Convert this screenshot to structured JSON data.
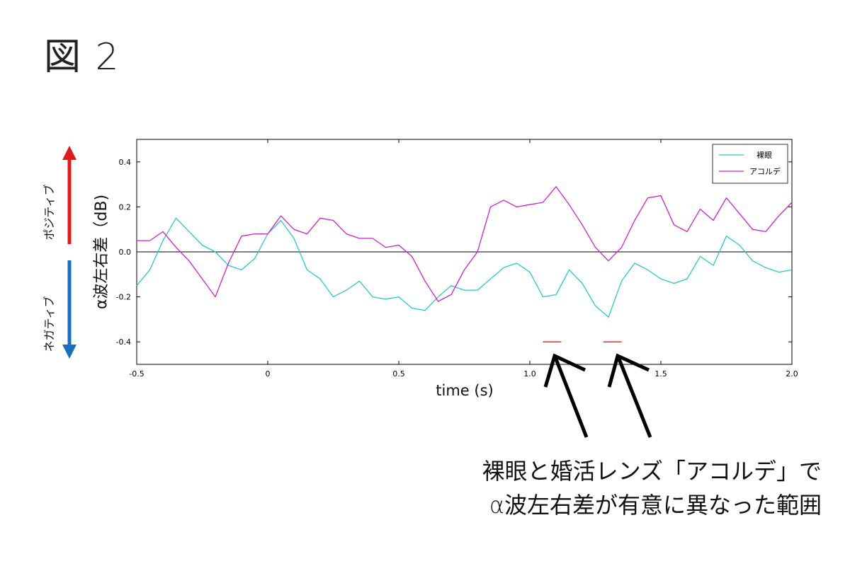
{
  "figure_title": "図 2",
  "chart_data": {
    "type": "line",
    "title": "",
    "xlabel": "time (s)",
    "ylabel": "α波左右差（dB)",
    "xlim": [
      -0.5,
      2.0
    ],
    "ylim": [
      -0.5,
      0.5
    ],
    "x_ticks": [
      "-0.5",
      "0",
      "0.5",
      "1.0",
      "1.5",
      "2.0"
    ],
    "y_ticks": [
      "0.4",
      "0.2",
      "0.0",
      "-0.2",
      "-0.4"
    ],
    "zero_line": 0.0,
    "grid": false,
    "legend_position": "top-right",
    "series": [
      {
        "name": "裸眼",
        "color": "#2cc7c7",
        "x": [
          -0.5,
          -0.45,
          -0.4,
          -0.35,
          -0.3,
          -0.25,
          -0.2,
          -0.15,
          -0.1,
          -0.05,
          0,
          0.05,
          0.1,
          0.15,
          0.2,
          0.25,
          0.3,
          0.35,
          0.4,
          0.45,
          0.5,
          0.55,
          0.6,
          0.65,
          0.7,
          0.75,
          0.8,
          0.85,
          0.9,
          0.95,
          1.0,
          1.05,
          1.1,
          1.15,
          1.2,
          1.25,
          1.3,
          1.35,
          1.4,
          1.45,
          1.5,
          1.55,
          1.6,
          1.65,
          1.7,
          1.75,
          1.8,
          1.85,
          1.9,
          1.95,
          2.0
        ],
        "values": [
          -0.15,
          -0.08,
          0.05,
          0.15,
          0.09,
          0.03,
          0.0,
          -0.06,
          -0.08,
          -0.03,
          0.08,
          0.14,
          0.06,
          -0.08,
          -0.12,
          -0.2,
          -0.17,
          -0.13,
          -0.2,
          -0.21,
          -0.2,
          -0.25,
          -0.26,
          -0.2,
          -0.15,
          -0.17,
          -0.17,
          -0.12,
          -0.07,
          -0.05,
          -0.09,
          -0.2,
          -0.19,
          -0.08,
          -0.14,
          -0.24,
          -0.29,
          -0.13,
          -0.05,
          -0.08,
          -0.12,
          -0.14,
          -0.12,
          -0.02,
          -0.06,
          0.07,
          0.03,
          -0.04,
          -0.07,
          -0.09,
          -0.08
        ]
      },
      {
        "name": "アコルデ",
        "color": "#cc22cc",
        "x": [
          -0.5,
          -0.45,
          -0.4,
          -0.35,
          -0.3,
          -0.25,
          -0.2,
          -0.15,
          -0.1,
          -0.05,
          0,
          0.05,
          0.1,
          0.15,
          0.2,
          0.25,
          0.3,
          0.35,
          0.4,
          0.45,
          0.5,
          0.55,
          0.6,
          0.65,
          0.7,
          0.75,
          0.8,
          0.85,
          0.9,
          0.95,
          1.0,
          1.05,
          1.1,
          1.15,
          1.2,
          1.25,
          1.3,
          1.35,
          1.4,
          1.45,
          1.5,
          1.55,
          1.6,
          1.65,
          1.7,
          1.75,
          1.8,
          1.85,
          1.9,
          1.95,
          2.0
        ],
        "values": [
          0.05,
          0.05,
          0.09,
          0.02,
          -0.04,
          -0.12,
          -0.2,
          -0.05,
          0.07,
          0.08,
          0.08,
          0.16,
          0.1,
          0.08,
          0.15,
          0.14,
          0.08,
          0.06,
          0.06,
          0.02,
          0.03,
          -0.02,
          -0.13,
          -0.22,
          -0.19,
          -0.08,
          0.0,
          0.2,
          0.23,
          0.2,
          0.21,
          0.22,
          0.29,
          0.21,
          0.12,
          0.02,
          -0.04,
          0.02,
          0.14,
          0.24,
          0.25,
          0.12,
          0.09,
          0.19,
          0.14,
          0.24,
          0.17,
          0.1,
          0.09,
          0.16,
          0.22
        ]
      }
    ],
    "significance_segments": [
      [
        1.05,
        1.12
      ],
      [
        1.28,
        1.35
      ]
    ],
    "significance_y": -0.4,
    "significance_color": "#ff2222"
  },
  "annotations": {
    "positive_label": "ポジティブ",
    "negative_label": "ネガティブ",
    "positive_color": "#e01b1b",
    "negative_color": "#1a6fbf",
    "arrow_color": "#000000",
    "caption_line1": "裸眼と婚活レンズ「アコルデ」で",
    "caption_line2": "α波左右差が有意に異なった範囲"
  }
}
